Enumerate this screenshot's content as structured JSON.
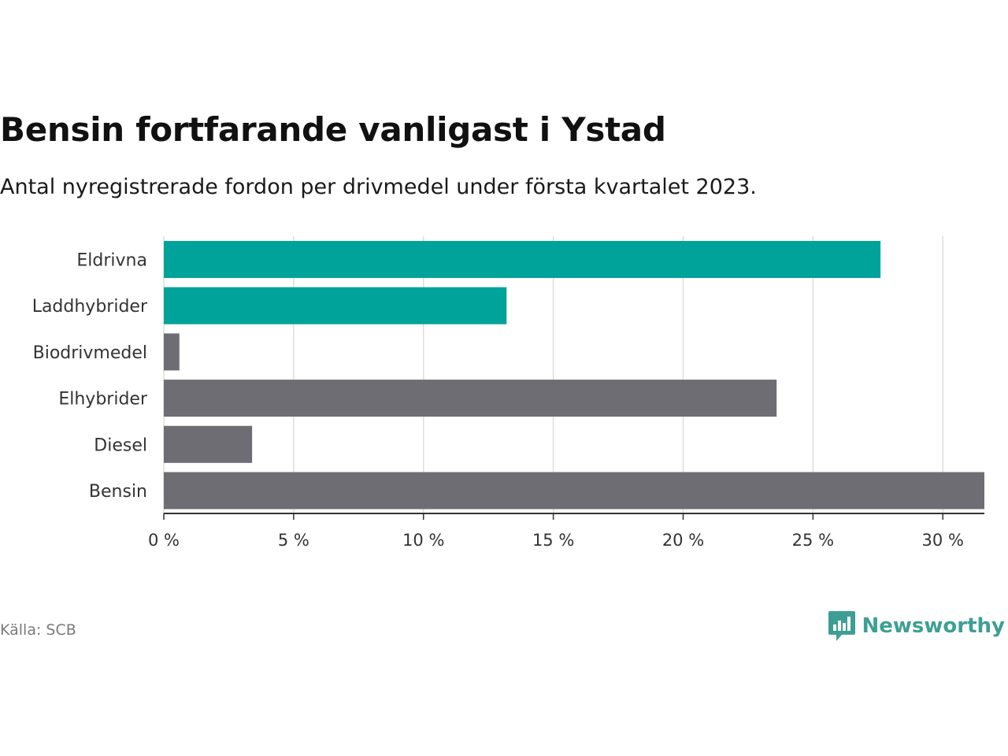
{
  "title": "Bensin fortfarande vanligast i Ystad",
  "subtitle": "Antal nyregistrerade fordon per drivmedel under första kvartalet 2023.",
  "source": "Källa: SCB",
  "brand": {
    "name": "Newsworthy",
    "icon": "newsworthy-chart-bubble-icon",
    "color": "#3d9f93"
  },
  "colors": {
    "highlight": "#00a39a",
    "default": "#6e6d73",
    "grid": "#dddddd",
    "axis": "#333333"
  },
  "chart_data": {
    "type": "bar",
    "orientation": "horizontal",
    "categories": [
      "Eldrivna",
      "Laddhybrider",
      "Biodrivmedel",
      "Elhybrider",
      "Diesel",
      "Bensin"
    ],
    "values": [
      27.6,
      13.2,
      0.6,
      23.6,
      3.4,
      31.6
    ],
    "highlighted": [
      true,
      true,
      false,
      false,
      false,
      false
    ],
    "xlim": [
      0,
      31.6
    ],
    "xticks": [
      0,
      5,
      10,
      15,
      20,
      25,
      30
    ],
    "xtick_labels": [
      "0 %",
      "5 %",
      "10 %",
      "15 %",
      "20 %",
      "25 %",
      "30 %"
    ],
    "grid": true,
    "legend": "none"
  }
}
